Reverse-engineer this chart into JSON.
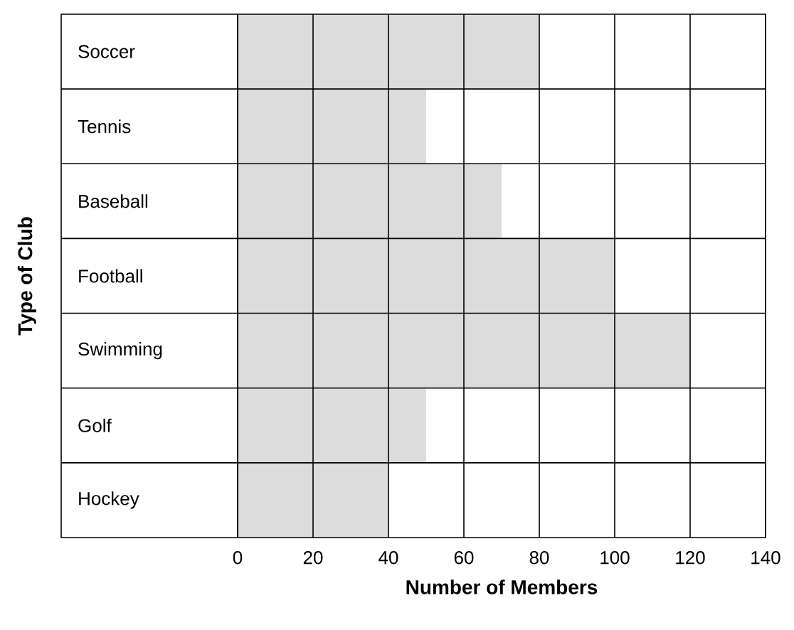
{
  "chart_data": {
    "type": "bar",
    "orientation": "horizontal",
    "xlabel": "Number of Members",
    "ylabel": "Type of Club",
    "categories": [
      "Soccer",
      "Tennis",
      "Baseball",
      "Football",
      "Swimming",
      "Golf",
      "Hockey"
    ],
    "values": [
      80,
      50,
      70,
      100,
      120,
      50,
      40
    ],
    "color": "#dcdcdc",
    "xlim": [
      0,
      140
    ],
    "xticks": [
      0,
      20,
      40,
      60,
      80,
      100,
      120,
      140
    ],
    "grid": true
  }
}
